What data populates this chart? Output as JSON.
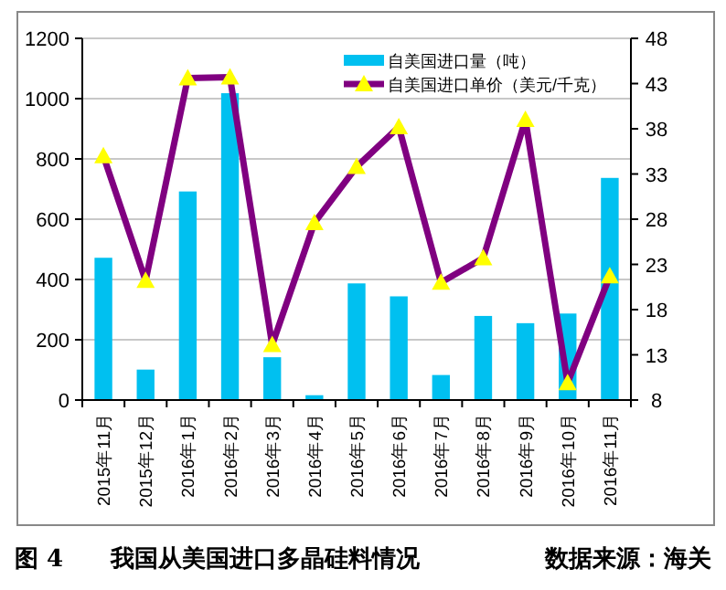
{
  "chart_data": {
    "type": "bar",
    "categories": [
      "2015年11月",
      "2015年12月",
      "2016年1月",
      "2016年2月",
      "2016年3月",
      "2016年4月",
      "2016年5月",
      "2016年6月",
      "2016年7月",
      "2016年8月",
      "2016年9月",
      "2016年10月",
      "2016年11月"
    ],
    "series": [
      {
        "name": "自美国进口量（吨）",
        "color": "#00c0f0",
        "values": [
          472,
          101,
          692,
          1018,
          142,
          16,
          387,
          344,
          83,
          279,
          255,
          287,
          737
        ]
      },
      {
        "name": "自美国进口单价（美元/千克）",
        "type": "line",
        "axis": "y2",
        "color": "#800080",
        "colors": [
          "#ffff00",
          "#ffff00",
          "#ffff00",
          "#ffff00",
          "#ffff00",
          "#ffff00",
          "#ffff00",
          "#ffff00",
          "#ffff00",
          "#ffff00",
          "#ffff00",
          "#ffff00",
          "#ffff00"
        ],
        "values": [
          35.0,
          21.2,
          43.6,
          43.7,
          14.1,
          27.6,
          33.8,
          38.2,
          21.0,
          23.7,
          39.0,
          9.9,
          21.7
        ]
      }
    ],
    "ylim": [
      0,
      1200
    ],
    "yticks": [
      0,
      200,
      400,
      600,
      800,
      1000,
      1200
    ],
    "y2lim": [
      8,
      48
    ],
    "y2ticks": [
      8,
      13,
      18,
      23,
      28,
      33,
      38,
      43,
      48
    ],
    "grid": "y",
    "legend": "top right",
    "marker": "triangle",
    "annotations": [
      "图 4　　我国从美国进口多晶硅料情况",
      "数据来源：海关"
    ]
  }
}
